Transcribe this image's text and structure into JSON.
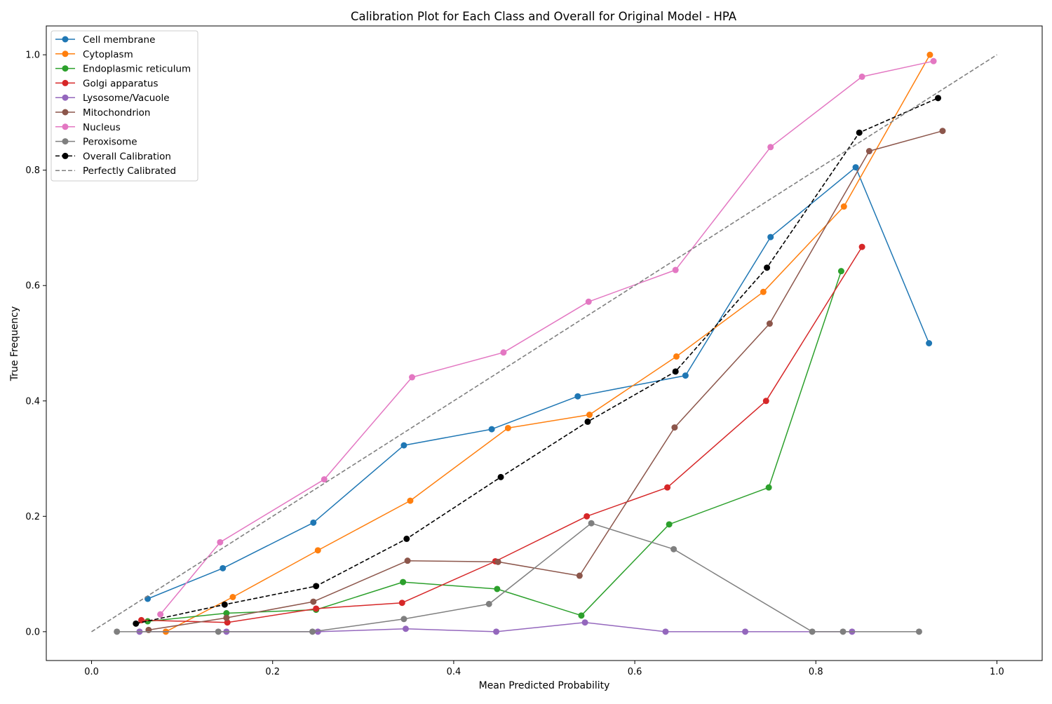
{
  "chart_data": {
    "type": "line",
    "title": "Calibration Plot for Each Class and Overall for Original Model - HPA",
    "xlabel": "Mean Predicted Probability",
    "ylabel": "True Frequency",
    "xlim": [
      -0.05,
      1.05
    ],
    "ylim": [
      -0.05,
      1.05
    ],
    "xticks": [
      0.0,
      0.2,
      0.4,
      0.6,
      0.8,
      1.0
    ],
    "yticks": [
      0.0,
      0.2,
      0.4,
      0.6,
      0.8,
      1.0
    ],
    "xtick_labels": [
      "0.0",
      "0.2",
      "0.4",
      "0.6",
      "0.8",
      "1.0"
    ],
    "ytick_labels": [
      "0.0",
      "0.2",
      "0.4",
      "0.6",
      "0.8",
      "1.0"
    ],
    "grid": false,
    "legend_position": "upper-left",
    "series": [
      {
        "name": "Cell membrane",
        "color": "#1f77b4",
        "dashed": false,
        "marker": true,
        "points": [
          [
            0.062,
            0.057
          ],
          [
            0.145,
            0.11
          ],
          [
            0.245,
            0.189
          ],
          [
            0.345,
            0.323
          ],
          [
            0.442,
            0.351
          ],
          [
            0.537,
            0.408
          ],
          [
            0.656,
            0.444
          ],
          [
            0.75,
            0.684
          ],
          [
            0.844,
            0.805
          ],
          [
            0.925,
            0.5
          ]
        ]
      },
      {
        "name": "Cytoplasm",
        "color": "#ff7f0e",
        "dashed": false,
        "marker": true,
        "points": [
          [
            0.082,
            0.0
          ],
          [
            0.156,
            0.06
          ],
          [
            0.25,
            0.141
          ],
          [
            0.352,
            0.227
          ],
          [
            0.46,
            0.353
          ],
          [
            0.55,
            0.376
          ],
          [
            0.646,
            0.477
          ],
          [
            0.742,
            0.589
          ],
          [
            0.831,
            0.737
          ],
          [
            0.926,
            1.0
          ]
        ]
      },
      {
        "name": "Endoplasmic reticulum",
        "color": "#2ca02c",
        "dashed": false,
        "marker": true,
        "points": [
          [
            0.062,
            0.018
          ],
          [
            0.149,
            0.032
          ],
          [
            0.248,
            0.038
          ],
          [
            0.344,
            0.086
          ],
          [
            0.448,
            0.074
          ],
          [
            0.541,
            0.028
          ],
          [
            0.638,
            0.186
          ],
          [
            0.748,
            0.25
          ],
          [
            0.828,
            0.625
          ]
        ]
      },
      {
        "name": "Golgi apparatus",
        "color": "#d62728",
        "dashed": false,
        "marker": true,
        "points": [
          [
            0.055,
            0.02
          ],
          [
            0.15,
            0.016
          ],
          [
            0.248,
            0.04
          ],
          [
            0.343,
            0.05
          ],
          [
            0.446,
            0.122
          ],
          [
            0.547,
            0.2
          ],
          [
            0.636,
            0.25
          ],
          [
            0.745,
            0.4
          ],
          [
            0.851,
            0.667
          ]
        ]
      },
      {
        "name": "Lysosome/Vacuole",
        "color": "#9467bd",
        "dashed": false,
        "marker": true,
        "points": [
          [
            0.053,
            0.0
          ],
          [
            0.149,
            0.0
          ],
          [
            0.25,
            0.0
          ],
          [
            0.347,
            0.005
          ],
          [
            0.447,
            0.0
          ],
          [
            0.545,
            0.016
          ],
          [
            0.634,
            0.0
          ],
          [
            0.722,
            0.0
          ],
          [
            0.84,
            0.0
          ]
        ]
      },
      {
        "name": "Mitochondrion",
        "color": "#8c564b",
        "dashed": false,
        "marker": true,
        "points": [
          [
            0.063,
            0.003
          ],
          [
            0.149,
            0.024
          ],
          [
            0.245,
            0.052
          ],
          [
            0.349,
            0.123
          ],
          [
            0.449,
            0.121
          ],
          [
            0.539,
            0.097
          ],
          [
            0.644,
            0.354
          ],
          [
            0.749,
            0.534
          ],
          [
            0.859,
            0.833
          ],
          [
            0.94,
            0.868
          ]
        ]
      },
      {
        "name": "Nucleus",
        "color": "#e377c2",
        "dashed": false,
        "marker": true,
        "points": [
          [
            0.076,
            0.03
          ],
          [
            0.142,
            0.155
          ],
          [
            0.257,
            0.264
          ],
          [
            0.354,
            0.441
          ],
          [
            0.455,
            0.484
          ],
          [
            0.549,
            0.572
          ],
          [
            0.645,
            0.627
          ],
          [
            0.75,
            0.84
          ],
          [
            0.851,
            0.962
          ],
          [
            0.93,
            0.989
          ]
        ]
      },
      {
        "name": "Peroxisome",
        "color": "#7f7f7f",
        "dashed": false,
        "marker": true,
        "points": [
          [
            0.028,
            0.0
          ],
          [
            0.14,
            0.0
          ],
          [
            0.244,
            0.0
          ],
          [
            0.345,
            0.022
          ],
          [
            0.439,
            0.048
          ],
          [
            0.552,
            0.188
          ],
          [
            0.643,
            0.143
          ],
          [
            0.796,
            0.0
          ],
          [
            0.83,
            0.0
          ],
          [
            0.914,
            0.0
          ]
        ]
      },
      {
        "name": "Overall Calibration",
        "color": "#000000",
        "dashed": true,
        "marker": true,
        "points": [
          [
            0.049,
            0.014
          ],
          [
            0.147,
            0.047
          ],
          [
            0.248,
            0.079
          ],
          [
            0.348,
            0.161
          ],
          [
            0.452,
            0.268
          ],
          [
            0.548,
            0.364
          ],
          [
            0.645,
            0.451
          ],
          [
            0.746,
            0.631
          ],
          [
            0.848,
            0.865
          ],
          [
            0.935,
            0.925
          ]
        ]
      },
      {
        "name": "Perfectly Calibrated",
        "color": "#808080",
        "dashed": true,
        "marker": false,
        "points": [
          [
            0.0,
            0.0
          ],
          [
            1.0,
            1.0
          ]
        ]
      }
    ]
  }
}
